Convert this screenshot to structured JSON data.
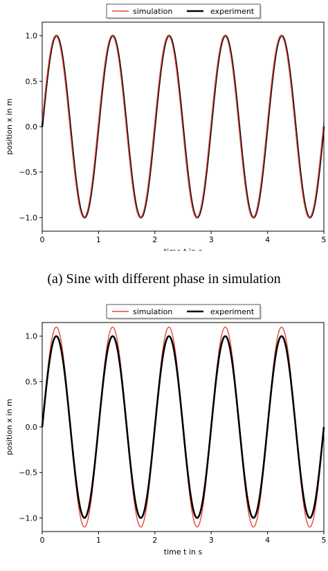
{
  "captions": {
    "a": "(a) Sine with different phase in simulation"
  },
  "colors": {
    "simulation": "#e8463c",
    "experiment": "#000000"
  },
  "chart_data": [
    {
      "type": "line",
      "xlabel": "time t in s",
      "ylabel": "position x in m",
      "xlim": [
        0,
        5
      ],
      "ylim": [
        -1.15,
        1.15
      ],
      "xticks": [
        "0",
        "1",
        "2",
        "3",
        "4",
        "5"
      ],
      "yticks": [
        "-1.0",
        "-0.5",
        "0.0",
        "0.5",
        "1.0"
      ],
      "grid": false,
      "legend_position": "top-center",
      "series": [
        {
          "name": "simulation",
          "function": "sin",
          "amplitude": 1.0,
          "frequency_hz": 1.0,
          "phase_rad": 0.05,
          "x_range": [
            0,
            5
          ]
        },
        {
          "name": "experiment",
          "function": "sin",
          "amplitude": 1.0,
          "frequency_hz": 1.0,
          "phase_rad": 0.0,
          "x_range": [
            0,
            5
          ]
        }
      ]
    },
    {
      "type": "line",
      "xlabel": "time t in s",
      "ylabel": "position x in m",
      "xlim": [
        0,
        5
      ],
      "ylim": [
        -1.15,
        1.15
      ],
      "xticks": [
        "0",
        "1",
        "2",
        "3",
        "4",
        "5"
      ],
      "yticks": [
        "-1.0",
        "-0.5",
        "0.0",
        "0.5",
        "1.0"
      ],
      "grid": false,
      "legend_position": "top-center",
      "series": [
        {
          "name": "simulation",
          "function": "sin",
          "amplitude": 1.1,
          "frequency_hz": 1.0,
          "phase_rad": 0.0,
          "x_range": [
            0,
            5
          ]
        },
        {
          "name": "experiment",
          "function": "sin",
          "amplitude": 1.0,
          "frequency_hz": 1.0,
          "phase_rad": 0.0,
          "x_range": [
            0,
            5
          ]
        }
      ]
    }
  ]
}
